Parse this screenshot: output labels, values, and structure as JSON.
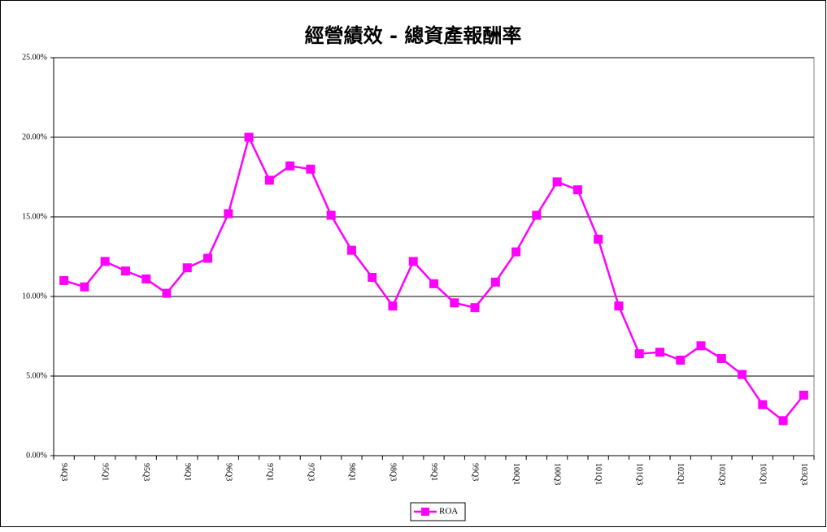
{
  "chart_data": {
    "type": "line",
    "title": "經營績效 - 總資產報酬率",
    "categories": [
      "94Q3",
      null,
      "95Q1",
      null,
      "95Q3",
      null,
      "96Q1",
      null,
      "96Q3",
      null,
      "97Q1",
      null,
      "97Q3",
      null,
      "98Q1",
      null,
      "98Q3",
      null,
      "99Q1",
      null,
      "99Q3",
      null,
      "100Q1",
      null,
      "100Q3",
      null,
      "101Q1",
      null,
      "101Q3",
      null,
      "102Q1",
      null,
      "102Q3",
      null,
      "103Q1",
      null,
      "103Q3"
    ],
    "series": [
      {
        "name": "ROA",
        "color": "#ff00ff",
        "values": [
          11.0,
          10.6,
          12.2,
          11.6,
          11.1,
          10.2,
          11.8,
          12.4,
          15.2,
          20.0,
          17.3,
          18.2,
          18.0,
          15.1,
          12.9,
          11.2,
          9.4,
          12.2,
          10.8,
          9.6,
          9.3,
          10.9,
          12.8,
          15.1,
          17.2,
          16.7,
          13.6,
          9.4,
          6.4,
          6.5,
          6.0,
          6.9,
          6.1,
          5.1,
          3.2,
          2.2,
          3.8
        ]
      }
    ],
    "ylim": [
      0,
      25
    ],
    "yticks": [
      {
        "value": 0,
        "label": "0.00%"
      },
      {
        "value": 5,
        "label": "5.00%"
      },
      {
        "value": 10,
        "label": "10.00%"
      },
      {
        "value": 15,
        "label": "15.00%"
      },
      {
        "value": 20,
        "label": "20.00%"
      },
      {
        "value": 25,
        "label": "25.00%"
      }
    ],
    "grid": true,
    "legend": "bottom"
  }
}
